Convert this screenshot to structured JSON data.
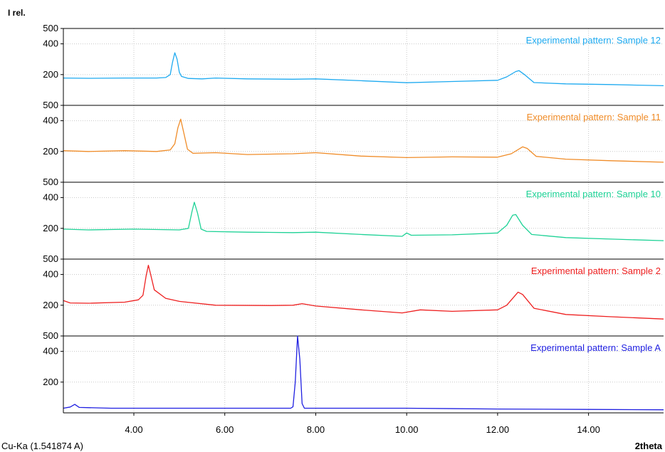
{
  "chart_data": {
    "type": "line",
    "y_axis_label": "I rel.",
    "x_axis_label": "2theta",
    "radiation_label": "Cu-Ka (1.541874 A)",
    "xlim": [
      2.45,
      15.65
    ],
    "x_ticks": [
      "4.00",
      "6.00",
      "8.00",
      "10.00",
      "12.00",
      "14.00"
    ],
    "x_tick_values": [
      4,
      6,
      8,
      10,
      12,
      14
    ],
    "grid": true,
    "panels": [
      {
        "name": "Experimental pattern: Sample 12",
        "color": "#1eaaf0",
        "ylim": [
          0,
          500
        ],
        "y_tick_labels": [
          "500",
          "400",
          "200"
        ],
        "y_tick_values": [
          500,
          400,
          200
        ],
        "points": [
          [
            2.45,
            178
          ],
          [
            3.0,
            176
          ],
          [
            3.8,
            178
          ],
          [
            4.5,
            178
          ],
          [
            4.7,
            181
          ],
          [
            4.8,
            200
          ],
          [
            4.85,
            280
          ],
          [
            4.9,
            342
          ],
          [
            4.95,
            300
          ],
          [
            5.0,
            215
          ],
          [
            5.05,
            188
          ],
          [
            5.2,
            175
          ],
          [
            5.5,
            172
          ],
          [
            5.8,
            178
          ],
          [
            6.5,
            172
          ],
          [
            7.5,
            170
          ],
          [
            8.0,
            172
          ],
          [
            9.0,
            160
          ],
          [
            10.0,
            147
          ],
          [
            11.0,
            155
          ],
          [
            12.0,
            163
          ],
          [
            12.2,
            185
          ],
          [
            12.4,
            220
          ],
          [
            12.47,
            226
          ],
          [
            12.6,
            198
          ],
          [
            12.8,
            148
          ],
          [
            13.5,
            140
          ],
          [
            14.5,
            135
          ],
          [
            15.65,
            128
          ]
        ]
      },
      {
        "name": "Experimental pattern: Sample 11",
        "color": "#f08c28",
        "ylim": [
          0,
          500
        ],
        "y_tick_labels": [
          "500",
          "400",
          "200"
        ],
        "y_tick_values": [
          500,
          400,
          200
        ],
        "points": [
          [
            2.45,
            205
          ],
          [
            3.0,
            200
          ],
          [
            3.8,
            205
          ],
          [
            4.5,
            200
          ],
          [
            4.8,
            210
          ],
          [
            4.9,
            250
          ],
          [
            4.97,
            355
          ],
          [
            5.03,
            410
          ],
          [
            5.1,
            320
          ],
          [
            5.18,
            215
          ],
          [
            5.3,
            188
          ],
          [
            5.8,
            192
          ],
          [
            6.5,
            180
          ],
          [
            7.5,
            185
          ],
          [
            8.0,
            192
          ],
          [
            9.0,
            170
          ],
          [
            10.0,
            160
          ],
          [
            11.0,
            165
          ],
          [
            12.0,
            163
          ],
          [
            12.3,
            185
          ],
          [
            12.55,
            230
          ],
          [
            12.65,
            220
          ],
          [
            12.85,
            168
          ],
          [
            13.5,
            150
          ],
          [
            14.5,
            140
          ],
          [
            15.65,
            130
          ]
        ]
      },
      {
        "name": "Experimental pattern: Sample 10",
        "color": "#1ed296",
        "ylim": [
          0,
          500
        ],
        "y_tick_labels": [
          "500",
          "400",
          "200"
        ],
        "y_tick_values": [
          500,
          400,
          200
        ],
        "points": [
          [
            2.45,
            195
          ],
          [
            3.0,
            190
          ],
          [
            4.0,
            195
          ],
          [
            5.0,
            190
          ],
          [
            5.2,
            200
          ],
          [
            5.28,
            310
          ],
          [
            5.33,
            370
          ],
          [
            5.4,
            300
          ],
          [
            5.48,
            195
          ],
          [
            5.6,
            180
          ],
          [
            6.5,
            175
          ],
          [
            7.5,
            172
          ],
          [
            8.0,
            175
          ],
          [
            9.0,
            160
          ],
          [
            9.9,
            148
          ],
          [
            10.0,
            170
          ],
          [
            10.1,
            155
          ],
          [
            11.0,
            158
          ],
          [
            12.0,
            170
          ],
          [
            12.2,
            220
          ],
          [
            12.33,
            285
          ],
          [
            12.4,
            290
          ],
          [
            12.55,
            220
          ],
          [
            12.75,
            160
          ],
          [
            13.5,
            140
          ],
          [
            14.5,
            130
          ],
          [
            15.65,
            120
          ]
        ]
      },
      {
        "name": "Experimental pattern: Sample 2",
        "color": "#ee2020",
        "ylim": [
          0,
          500
        ],
        "y_tick_labels": [
          "500",
          "400",
          "200"
        ],
        "y_tick_values": [
          500,
          400,
          200
        ],
        "points": [
          [
            2.45,
            230
          ],
          [
            2.6,
            215
          ],
          [
            3.0,
            213
          ],
          [
            3.8,
            220
          ],
          [
            4.1,
            235
          ],
          [
            4.2,
            265
          ],
          [
            4.27,
            390
          ],
          [
            4.32,
            460
          ],
          [
            4.37,
            400
          ],
          [
            4.45,
            300
          ],
          [
            4.7,
            245
          ],
          [
            5.0,
            225
          ],
          [
            5.8,
            200
          ],
          [
            7.0,
            198
          ],
          [
            7.5,
            200
          ],
          [
            7.7,
            210
          ],
          [
            8.0,
            195
          ],
          [
            9.0,
            170
          ],
          [
            9.9,
            150
          ],
          [
            10.3,
            170
          ],
          [
            11.0,
            160
          ],
          [
            12.0,
            170
          ],
          [
            12.2,
            200
          ],
          [
            12.45,
            285
          ],
          [
            12.55,
            270
          ],
          [
            12.8,
            180
          ],
          [
            13.5,
            140
          ],
          [
            14.5,
            125
          ],
          [
            15.65,
            110
          ]
        ]
      },
      {
        "name": "Experimental pattern: Sample A",
        "color": "#1f1fe1",
        "ylim": [
          0,
          500
        ],
        "y_tick_labels": [
          "500",
          "400",
          "200"
        ],
        "y_tick_values": [
          500,
          400,
          200
        ],
        "points": [
          [
            2.45,
            30
          ],
          [
            2.6,
            38
          ],
          [
            2.7,
            55
          ],
          [
            2.8,
            35
          ],
          [
            3.5,
            30
          ],
          [
            5.0,
            30
          ],
          [
            7.0,
            30
          ],
          [
            7.45,
            30
          ],
          [
            7.5,
            40
          ],
          [
            7.55,
            200
          ],
          [
            7.6,
            500
          ],
          [
            7.65,
            350
          ],
          [
            7.7,
            60
          ],
          [
            7.75,
            30
          ],
          [
            8.5,
            30
          ],
          [
            10.0,
            30
          ],
          [
            12.0,
            25
          ],
          [
            14.0,
            22
          ],
          [
            15.65,
            20
          ]
        ]
      }
    ]
  }
}
